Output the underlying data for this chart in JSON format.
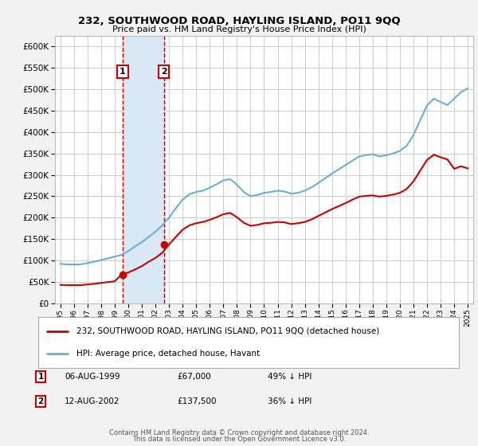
{
  "title": "232, SOUTHWOOD ROAD, HAYLING ISLAND, PO11 9QQ",
  "subtitle": "Price paid vs. HM Land Registry's House Price Index (HPI)",
  "hpi_label": "HPI: Average price, detached house, Havant",
  "property_label": "232, SOUTHWOOD ROAD, HAYLING ISLAND, PO11 9QQ (detached house)",
  "footer1": "Contains HM Land Registry data © Crown copyright and database right 2024.",
  "footer2": "This data is licensed under the Open Government Licence v3.0.",
  "sales": [
    {
      "date": 1999.59,
      "price": 67000,
      "label": "1",
      "text": "06-AUG-1999",
      "price_text": "£67,000",
      "hpi_text": "49% ↓ HPI"
    },
    {
      "date": 2002.61,
      "price": 137500,
      "label": "2",
      "text": "12-AUG-2002",
      "price_text": "£137,500",
      "hpi_text": "36% ↓ HPI"
    }
  ],
  "sale_color": "#cc0000",
  "hpi_color": "#6baed6",
  "shade_color": "#d9e8f5",
  "vline_color": "#cc0000",
  "ylim": [
    0,
    625000
  ],
  "yticks": [
    0,
    50000,
    100000,
    150000,
    200000,
    250000,
    300000,
    350000,
    400000,
    450000,
    500000,
    550000,
    600000
  ],
  "grid_color": "#cccccc",
  "background_color": "#f2f2f2",
  "plot_bg": "#ffffff",
  "hpi_years": [
    1995.0,
    1995.5,
    1996.0,
    1996.5,
    1997.0,
    1997.5,
    1998.0,
    1998.5,
    1999.0,
    1999.5,
    2000.0,
    2000.5,
    2001.0,
    2001.5,
    2002.0,
    2002.5,
    2003.0,
    2003.5,
    2004.0,
    2004.5,
    2005.0,
    2005.5,
    2006.0,
    2006.5,
    2007.0,
    2007.5,
    2008.0,
    2008.5,
    2009.0,
    2009.5,
    2010.0,
    2010.5,
    2011.0,
    2011.5,
    2012.0,
    2012.5,
    2013.0,
    2013.5,
    2014.0,
    2014.5,
    2015.0,
    2015.5,
    2016.0,
    2016.5,
    2017.0,
    2017.5,
    2018.0,
    2018.5,
    2019.0,
    2019.5,
    2020.0,
    2020.5,
    2021.0,
    2021.5,
    2022.0,
    2022.5,
    2023.0,
    2023.5,
    2024.0,
    2024.5,
    2025.0
  ],
  "hpi_values": [
    92000,
    91000,
    90500,
    91000,
    94000,
    97000,
    101000,
    105000,
    109000,
    113000,
    122000,
    133000,
    143000,
    155000,
    167000,
    182000,
    200000,
    222000,
    242000,
    255000,
    260000,
    263000,
    270000,
    278000,
    287000,
    290000,
    277000,
    260000,
    250000,
    253000,
    258000,
    260000,
    263000,
    261000,
    256000,
    258000,
    263000,
    271000,
    281000,
    292000,
    303000,
    313000,
    323000,
    333000,
    343000,
    346000,
    348000,
    343000,
    346000,
    350000,
    356000,
    368000,
    393000,
    428000,
    462000,
    478000,
    470000,
    463000,
    478000,
    493000,
    502000
  ],
  "prop_years": [
    1995.0,
    1995.5,
    1996.0,
    1996.5,
    1997.0,
    1997.5,
    1998.0,
    1998.5,
    1999.0,
    1999.5,
    2000.0,
    2000.5,
    2001.0,
    2001.5,
    2002.0,
    2002.5,
    2003.0,
    2003.5,
    2004.0,
    2004.5,
    2005.0,
    2005.5,
    2006.0,
    2006.5,
    2007.0,
    2007.5,
    2008.0,
    2008.5,
    2009.0,
    2009.5,
    2010.0,
    2010.5,
    2011.0,
    2011.5,
    2012.0,
    2012.5,
    2013.0,
    2013.5,
    2014.0,
    2014.5,
    2015.0,
    2015.5,
    2016.0,
    2016.5,
    2017.0,
    2017.5,
    2018.0,
    2018.5,
    2019.0,
    2019.5,
    2020.0,
    2020.5,
    2021.0,
    2021.5,
    2022.0,
    2022.5,
    2023.0,
    2023.5,
    2024.0,
    2024.5,
    2025.0
  ],
  "prop_values": [
    43000,
    42500,
    42200,
    42500,
    44000,
    45500,
    47500,
    49500,
    51500,
    67000,
    72000,
    79000,
    87000,
    97000,
    106000,
    118000,
    137500,
    155000,
    172000,
    182000,
    187000,
    190000,
    195000,
    201000,
    208000,
    211000,
    201000,
    188000,
    181000,
    183000,
    187000,
    188000,
    190000,
    189000,
    185000,
    187000,
    190000,
    196000,
    204000,
    212000,
    220000,
    227000,
    234000,
    242000,
    249000,
    251000,
    252000,
    249000,
    251000,
    254000,
    258000,
    267000,
    285000,
    310000,
    335000,
    347000,
    341000,
    336000,
    314000,
    320000,
    315000
  ]
}
